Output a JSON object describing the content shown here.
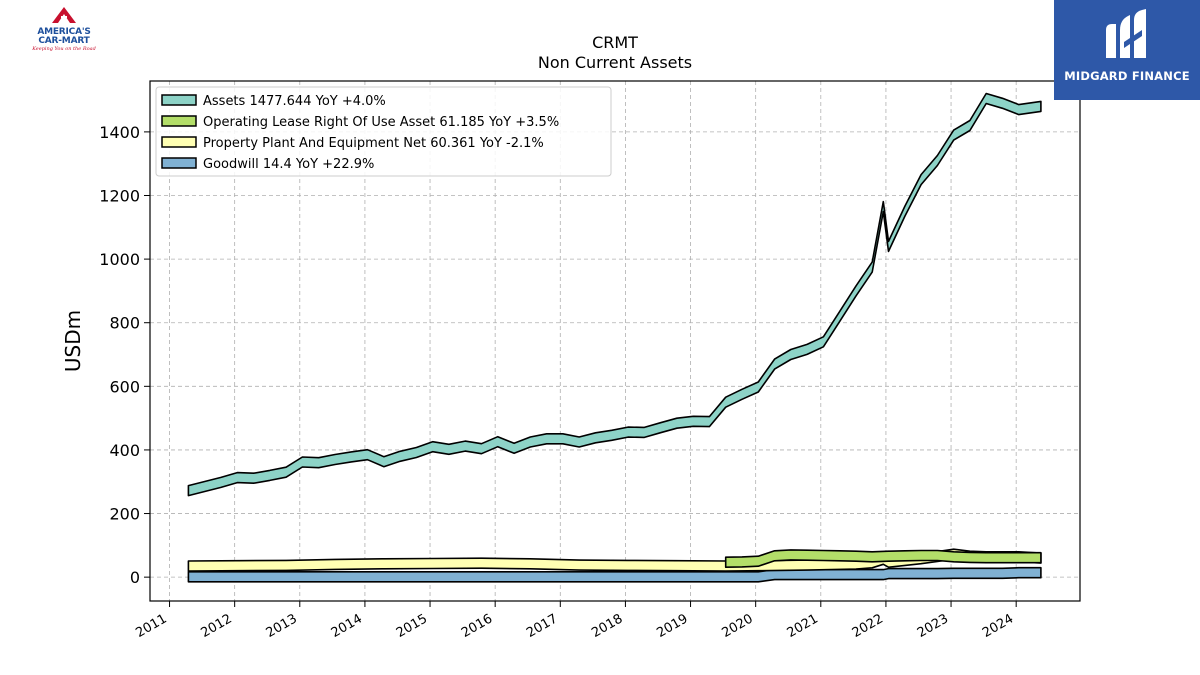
{
  "brand": {
    "left_line1": "AMERICA'S",
    "left_line2": "CAR-MART",
    "left_tagline": "Keeping You on the Road",
    "right_name": "MIDGARD FINANCE",
    "left_logo_icon": "car-mart-a-logo-icon",
    "right_logo_icon": "midgard-m-logo-icon",
    "right_bg_color": "#2e58a8"
  },
  "chart_data": {
    "type": "area",
    "title": "CRMT",
    "subtitle": "Non Current  Assets",
    "ylabel": "USDm",
    "xlabel": "",
    "ylim": [
      -75,
      1560
    ],
    "xlim": [
      2010.7,
      2024.98
    ],
    "yticks": [
      0,
      200,
      400,
      600,
      800,
      1000,
      1200,
      1400
    ],
    "xticks": [
      "2011",
      "2012",
      "2013",
      "2014",
      "2015",
      "2016",
      "2017",
      "2018",
      "2019",
      "2020",
      "2021",
      "2022",
      "2023",
      "2024"
    ],
    "grid": true,
    "legend_position": "top-left",
    "series": [
      {
        "name": "Assets",
        "legend": "Assets  1477.644 YoY +4.0%",
        "color": "#8dd3c7",
        "x": [
          2011.29,
          2011.54,
          2011.79,
          2012.04,
          2012.29,
          2012.54,
          2012.79,
          2013.04,
          2013.29,
          2013.54,
          2013.79,
          2014.04,
          2014.29,
          2014.54,
          2014.79,
          2015.04,
          2015.29,
          2015.54,
          2015.79,
          2016.04,
          2016.29,
          2016.54,
          2016.79,
          2017.04,
          2017.29,
          2017.54,
          2017.79,
          2018.04,
          2018.29,
          2018.54,
          2018.79,
          2019.04,
          2019.29,
          2019.54,
          2019.79,
          2020.04,
          2020.29,
          2020.54,
          2020.79,
          2021.04,
          2021.29,
          2021.54,
          2021.79,
          2021.96,
          2022.04,
          2022.29,
          2022.54,
          2022.79,
          2023.04,
          2023.29,
          2023.54,
          2023.79,
          2024.04,
          2024.38
        ],
        "values": [
          272,
          285,
          298,
          313,
          311,
          320,
          330,
          362,
          360,
          370,
          378,
          385,
          363,
          380,
          392,
          410,
          402,
          412,
          404,
          426,
          405,
          425,
          435,
          435,
          425,
          438,
          446,
          456,
          455,
          470,
          484,
          490,
          489,
          550,
          575,
          598,
          670,
          700,
          716,
          740,
          820,
          900,
          975,
          1165,
          1040,
          1150,
          1250,
          1310,
          1390,
          1420,
          1505,
          1490,
          1470,
          1480
        ]
      },
      {
        "name": "Operating Lease Right Of Use Asset",
        "legend": "Operating Lease Right Of Use Asset  61.185 YoY +3.5%",
        "color": "#b3de69",
        "x": [
          2019.54,
          2019.79,
          2020.04,
          2020.29,
          2020.54,
          2020.79,
          2021.04,
          2021.29,
          2021.54,
          2021.79,
          2022.04,
          2022.29,
          2022.54,
          2022.79,
          2023.04,
          2023.29,
          2023.54,
          2023.79,
          2024.04,
          2024.38
        ],
        "values": [
          47,
          48,
          50,
          67,
          70,
          69,
          68,
          67,
          66,
          64,
          66,
          67,
          68,
          68,
          64,
          62,
          61,
          61,
          61,
          61
        ]
      },
      {
        "name": "Property Plant And Equipment Net",
        "legend": "Property Plant And Equipment Net  60.361 YoY -2.1%",
        "color": "#ffffb3",
        "x": [
          2011.29,
          2012.04,
          2012.79,
          2013.54,
          2014.29,
          2015.04,
          2015.79,
          2016.54,
          2017.29,
          2018.04,
          2018.79,
          2019.54,
          2020.04,
          2020.79,
          2021.54,
          2021.79,
          2021.96,
          2022.04,
          2022.54,
          2022.79,
          2023.04,
          2023.29,
          2023.54,
          2024.04,
          2024.38
        ],
        "values": [
          35,
          36,
          37,
          40,
          42,
          43,
          44,
          42,
          38,
          37,
          36,
          35,
          36,
          38,
          41,
          45,
          56,
          47,
          58,
          65,
          72,
          66,
          64,
          64,
          60
        ]
      },
      {
        "name": "Goodwill",
        "legend": "Goodwill  14.4 YoY +22.9%",
        "color": "#80b1d3",
        "x": [
          2011.29,
          2012.04,
          2013.04,
          2014.04,
          2015.04,
          2016.04,
          2017.04,
          2018.04,
          2019.04,
          2020.04,
          2020.29,
          2021.04,
          2021.96,
          2022.04,
          2022.79,
          2023.04,
          2023.79,
          2024.04,
          2024.38
        ],
        "values": [
          1,
          1,
          1,
          1,
          1,
          1,
          1,
          1,
          1,
          1,
          8,
          8,
          8,
          11,
          11,
          12,
          12,
          14,
          14
        ]
      }
    ]
  }
}
